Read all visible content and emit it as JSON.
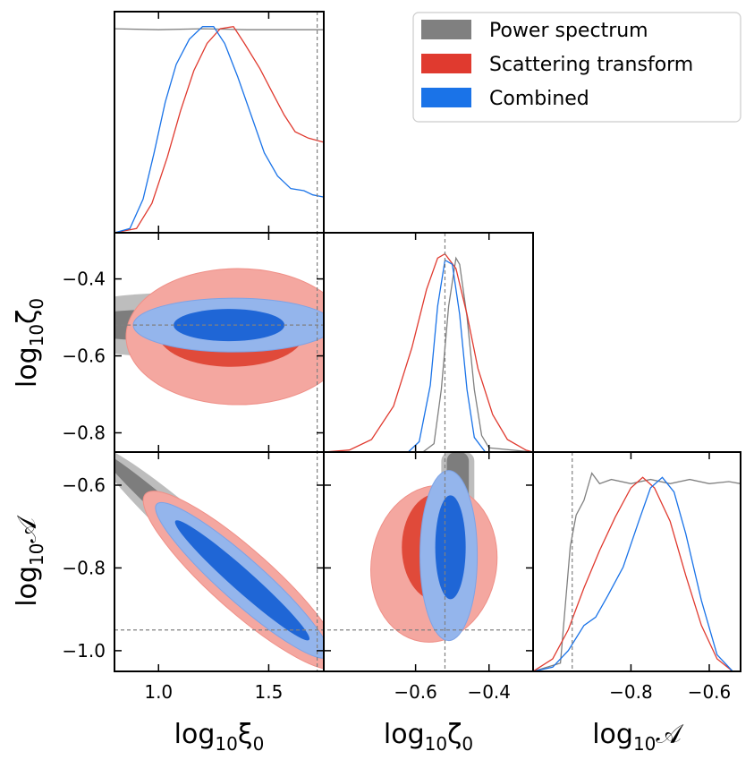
{
  "chart_data": {
    "type": "corner",
    "parameters": [
      {
        "key": "xi0",
        "label_base": "log",
        "label_sub": "10",
        "label_sym": "ξ",
        "label_symsub": "0",
        "range": [
          0.8,
          1.75
        ],
        "ticks": [
          1.0,
          1.5
        ],
        "tick_labels": [
          "1.0",
          "1.5"
        ],
        "truth": 1.72
      },
      {
        "key": "zeta0",
        "label_base": "log",
        "label_sub": "10",
        "label_sym": "ζ",
        "label_symsub": "0",
        "range": [
          -0.85,
          -0.28
        ],
        "ticks": [
          -0.6,
          -0.4
        ],
        "tick_labels": [
          "−0.6",
          "−0.4"
        ],
        "truth": -0.52
      },
      {
        "key": "A",
        "label_base": "log",
        "label_sub": "10",
        "label_sym": "𝒜",
        "label_symsub": "",
        "range": [
          -1.05,
          -0.52
        ],
        "ticks": [
          -0.8,
          -0.6
        ],
        "tick_labels": [
          "−0.8",
          "−0.6"
        ],
        "truth": -0.95
      }
    ],
    "y_ticks": {
      "zeta0": {
        "ticks": [
          -0.4,
          -0.6,
          -0.8
        ],
        "tick_labels": [
          "−0.4",
          "−0.6",
          "−0.8"
        ]
      },
      "A": {
        "ticks": [
          -0.6,
          -0.8,
          -1.0
        ],
        "tick_labels": [
          "−0.6",
          "−0.8",
          "−1.0"
        ]
      }
    },
    "legend": [
      {
        "name": "Power spectrum",
        "color": "#808080"
      },
      {
        "name": "Scattering transform",
        "color": "#e03a2f"
      },
      {
        "name": "Combined",
        "color": "#1a73e8"
      }
    ],
    "marginals": {
      "xi0": {
        "power": [
          [
            0.8,
            0.97
          ],
          [
            1.0,
            0.965
          ],
          [
            1.2,
            0.97
          ],
          [
            1.4,
            0.965
          ],
          [
            1.6,
            0.965
          ],
          [
            1.75,
            0.965
          ]
        ],
        "scattering": [
          [
            0.8,
            0.0
          ],
          [
            0.9,
            0.02
          ],
          [
            0.97,
            0.14
          ],
          [
            1.04,
            0.36
          ],
          [
            1.1,
            0.58
          ],
          [
            1.16,
            0.77
          ],
          [
            1.22,
            0.9
          ],
          [
            1.28,
            0.97
          ],
          [
            1.34,
            0.98
          ],
          [
            1.39,
            0.9
          ],
          [
            1.46,
            0.78
          ],
          [
            1.52,
            0.66
          ],
          [
            1.57,
            0.56
          ],
          [
            1.62,
            0.48
          ],
          [
            1.68,
            0.45
          ],
          [
            1.75,
            0.43
          ]
        ],
        "combined": [
          [
            0.8,
            0.0
          ],
          [
            0.87,
            0.02
          ],
          [
            0.93,
            0.16
          ],
          [
            0.98,
            0.38
          ],
          [
            1.03,
            0.62
          ],
          [
            1.08,
            0.8
          ],
          [
            1.14,
            0.92
          ],
          [
            1.2,
            0.98
          ],
          [
            1.25,
            0.98
          ],
          [
            1.3,
            0.9
          ],
          [
            1.36,
            0.74
          ],
          [
            1.42,
            0.56
          ],
          [
            1.48,
            0.38
          ],
          [
            1.54,
            0.27
          ],
          [
            1.6,
            0.21
          ],
          [
            1.66,
            0.2
          ],
          [
            1.7,
            0.18
          ],
          [
            1.75,
            0.17
          ]
        ]
      },
      "zeta0": {
        "power": [
          [
            -0.85,
            0.0
          ],
          [
            -0.58,
            0.0
          ],
          [
            -0.55,
            0.04
          ],
          [
            -0.53,
            0.3
          ],
          [
            -0.51,
            0.7
          ],
          [
            -0.49,
            0.93
          ],
          [
            -0.48,
            0.9
          ],
          [
            -0.46,
            0.65
          ],
          [
            -0.44,
            0.3
          ],
          [
            -0.42,
            0.08
          ],
          [
            -0.4,
            0.02
          ],
          [
            -0.28,
            0.0
          ]
        ],
        "scattering": [
          [
            -0.85,
            0.0
          ],
          [
            -0.78,
            0.01
          ],
          [
            -0.72,
            0.06
          ],
          [
            -0.66,
            0.22
          ],
          [
            -0.61,
            0.5
          ],
          [
            -0.57,
            0.78
          ],
          [
            -0.54,
            0.93
          ],
          [
            -0.52,
            0.95
          ],
          [
            -0.49,
            0.88
          ],
          [
            -0.46,
            0.66
          ],
          [
            -0.43,
            0.4
          ],
          [
            -0.39,
            0.18
          ],
          [
            -0.35,
            0.06
          ],
          [
            -0.3,
            0.01
          ],
          [
            -0.28,
            0.0
          ]
        ],
        "combined": [
          [
            -0.85,
            0.0
          ],
          [
            -0.62,
            0.0
          ],
          [
            -0.59,
            0.05
          ],
          [
            -0.56,
            0.32
          ],
          [
            -0.54,
            0.7
          ],
          [
            -0.52,
            0.92
          ],
          [
            -0.5,
            0.9
          ],
          [
            -0.48,
            0.66
          ],
          [
            -0.46,
            0.3
          ],
          [
            -0.44,
            0.07
          ],
          [
            -0.41,
            0.0
          ],
          [
            -0.28,
            0.0
          ]
        ]
      },
      "A": {
        "power": [
          [
            -1.05,
            0.0
          ],
          [
            -0.98,
            0.04
          ],
          [
            -0.955,
            0.6
          ],
          [
            -0.94,
            0.75
          ],
          [
            -0.92,
            0.82
          ],
          [
            -0.9,
            0.95
          ],
          [
            -0.88,
            0.9
          ],
          [
            -0.85,
            0.92
          ],
          [
            -0.8,
            0.9
          ],
          [
            -0.75,
            0.92
          ],
          [
            -0.7,
            0.9
          ],
          [
            -0.65,
            0.92
          ],
          [
            -0.6,
            0.9
          ],
          [
            -0.55,
            0.91
          ],
          [
            -0.52,
            0.9
          ]
        ],
        "scattering": [
          [
            -1.05,
            0.0
          ],
          [
            -1.0,
            0.06
          ],
          [
            -0.96,
            0.2
          ],
          [
            -0.92,
            0.4
          ],
          [
            -0.88,
            0.58
          ],
          [
            -0.84,
            0.74
          ],
          [
            -0.8,
            0.88
          ],
          [
            -0.77,
            0.93
          ],
          [
            -0.74,
            0.88
          ],
          [
            -0.7,
            0.72
          ],
          [
            -0.66,
            0.46
          ],
          [
            -0.62,
            0.22
          ],
          [
            -0.58,
            0.06
          ],
          [
            -0.54,
            0.0
          ]
        ],
        "combined": [
          [
            -1.05,
            0.0
          ],
          [
            -1.0,
            0.02
          ],
          [
            -0.96,
            0.1
          ],
          [
            -0.92,
            0.22
          ],
          [
            -0.89,
            0.26
          ],
          [
            -0.86,
            0.36
          ],
          [
            -0.82,
            0.5
          ],
          [
            -0.78,
            0.72
          ],
          [
            -0.75,
            0.88
          ],
          [
            -0.72,
            0.93
          ],
          [
            -0.69,
            0.86
          ],
          [
            -0.66,
            0.66
          ],
          [
            -0.62,
            0.34
          ],
          [
            -0.58,
            0.08
          ],
          [
            -0.54,
            0.0
          ]
        ]
      }
    }
  }
}
